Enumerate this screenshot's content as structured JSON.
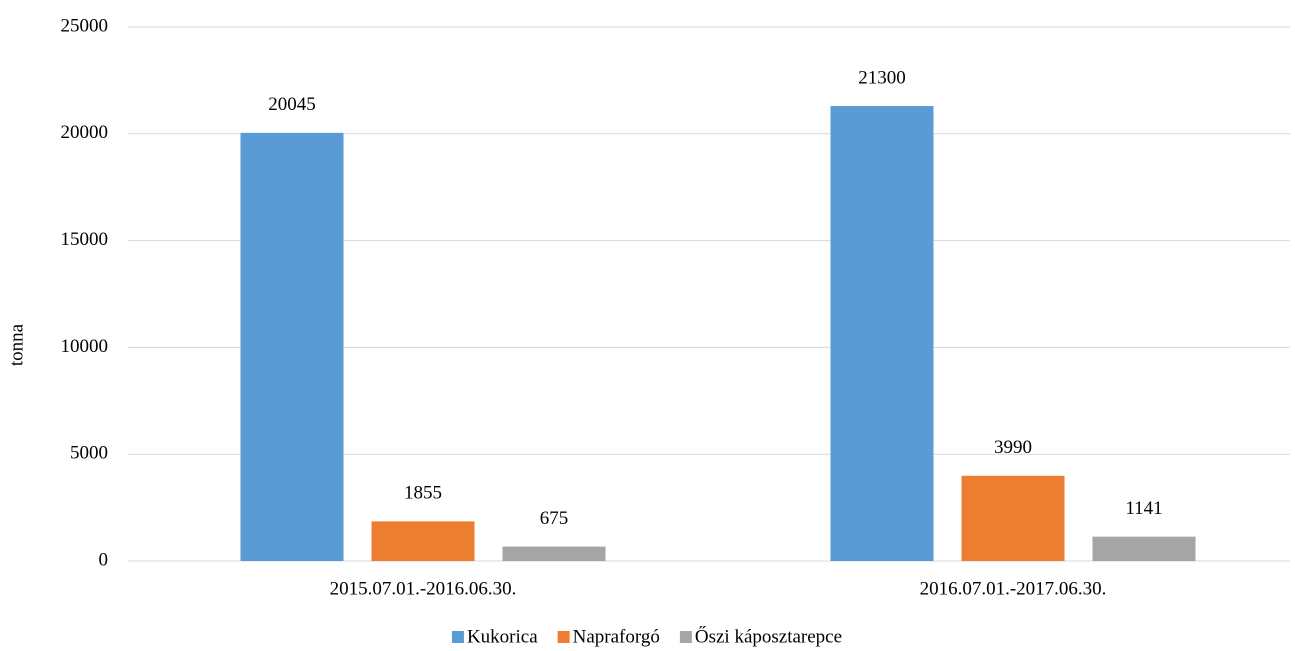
{
  "chart_data": {
    "type": "bar",
    "y_label": "tonna",
    "categories": [
      "2015.07.01.-2016.06.30.",
      "2016.07.01.-2017.06.30."
    ],
    "series": [
      {
        "name": "Kukorica",
        "color": "#5b9bd5",
        "values": [
          20045,
          21300
        ]
      },
      {
        "name": "Napraforgó",
        "color": "#ed7d31",
        "values": [
          1855,
          3990
        ]
      },
      {
        "name": "Őszi káposztarepce",
        "color": "#a5a5a5",
        "values": [
          675,
          1141
        ]
      }
    ],
    "ylim": [
      0,
      25000
    ],
    "yticks": [
      0,
      5000,
      10000,
      15000,
      20000,
      25000
    ],
    "grid": true,
    "legend": "bottom"
  }
}
